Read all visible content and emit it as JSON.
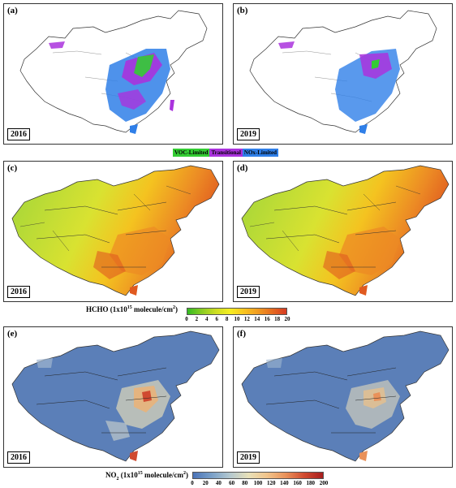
{
  "panels": {
    "a": {
      "letter": "(a)",
      "year": "2016"
    },
    "b": {
      "letter": "(b)",
      "year": "2019"
    },
    "c": {
      "letter": "(c)",
      "year": "2016"
    },
    "d": {
      "letter": "(d)",
      "year": "2019"
    },
    "e": {
      "letter": "(e)",
      "year": "2016"
    },
    "f": {
      "letter": "(f)",
      "year": "2019"
    }
  },
  "regime_legend": {
    "items": [
      {
        "label": "VOC-Limited",
        "color": "#33cc33"
      },
      {
        "label": "Transitional",
        "color": "#aa33dd"
      },
      {
        "label": "NOx-Limited",
        "color": "#2f7fe8"
      }
    ]
  },
  "hcho_colorbar": {
    "title": "HCHO (1x10",
    "title_sup": "15",
    "title_tail": " molecule/cm",
    "title_sup2": "2",
    "title_end": ")",
    "ticks": [
      "0",
      "2",
      "4",
      "6",
      "8",
      "10",
      "12",
      "14",
      "16",
      "18",
      "20"
    ],
    "colors": [
      "#33bb22",
      "#88cc22",
      "#ccdd22",
      "#f5ee22",
      "#f9c41f",
      "#f09a20",
      "#e56a1f",
      "#d53a22"
    ]
  },
  "no2_colorbar": {
    "title": "NO",
    "title_sub": "2",
    "title_mid": " (1x10",
    "title_sup": "15",
    "title_tail": " molecule/cm",
    "title_sup2": "2",
    "title_end": ")",
    "ticks": [
      "0",
      "20",
      "40",
      "60",
      "80",
      "100",
      "120",
      "140",
      "160",
      "180",
      "200"
    ],
    "colors": [
      "#4a73b8",
      "#7aa0c8",
      "#b4c8cf",
      "#e8e0b8",
      "#f1c38a",
      "#e9915a",
      "#d04a30",
      "#a81e1e"
    ]
  }
}
